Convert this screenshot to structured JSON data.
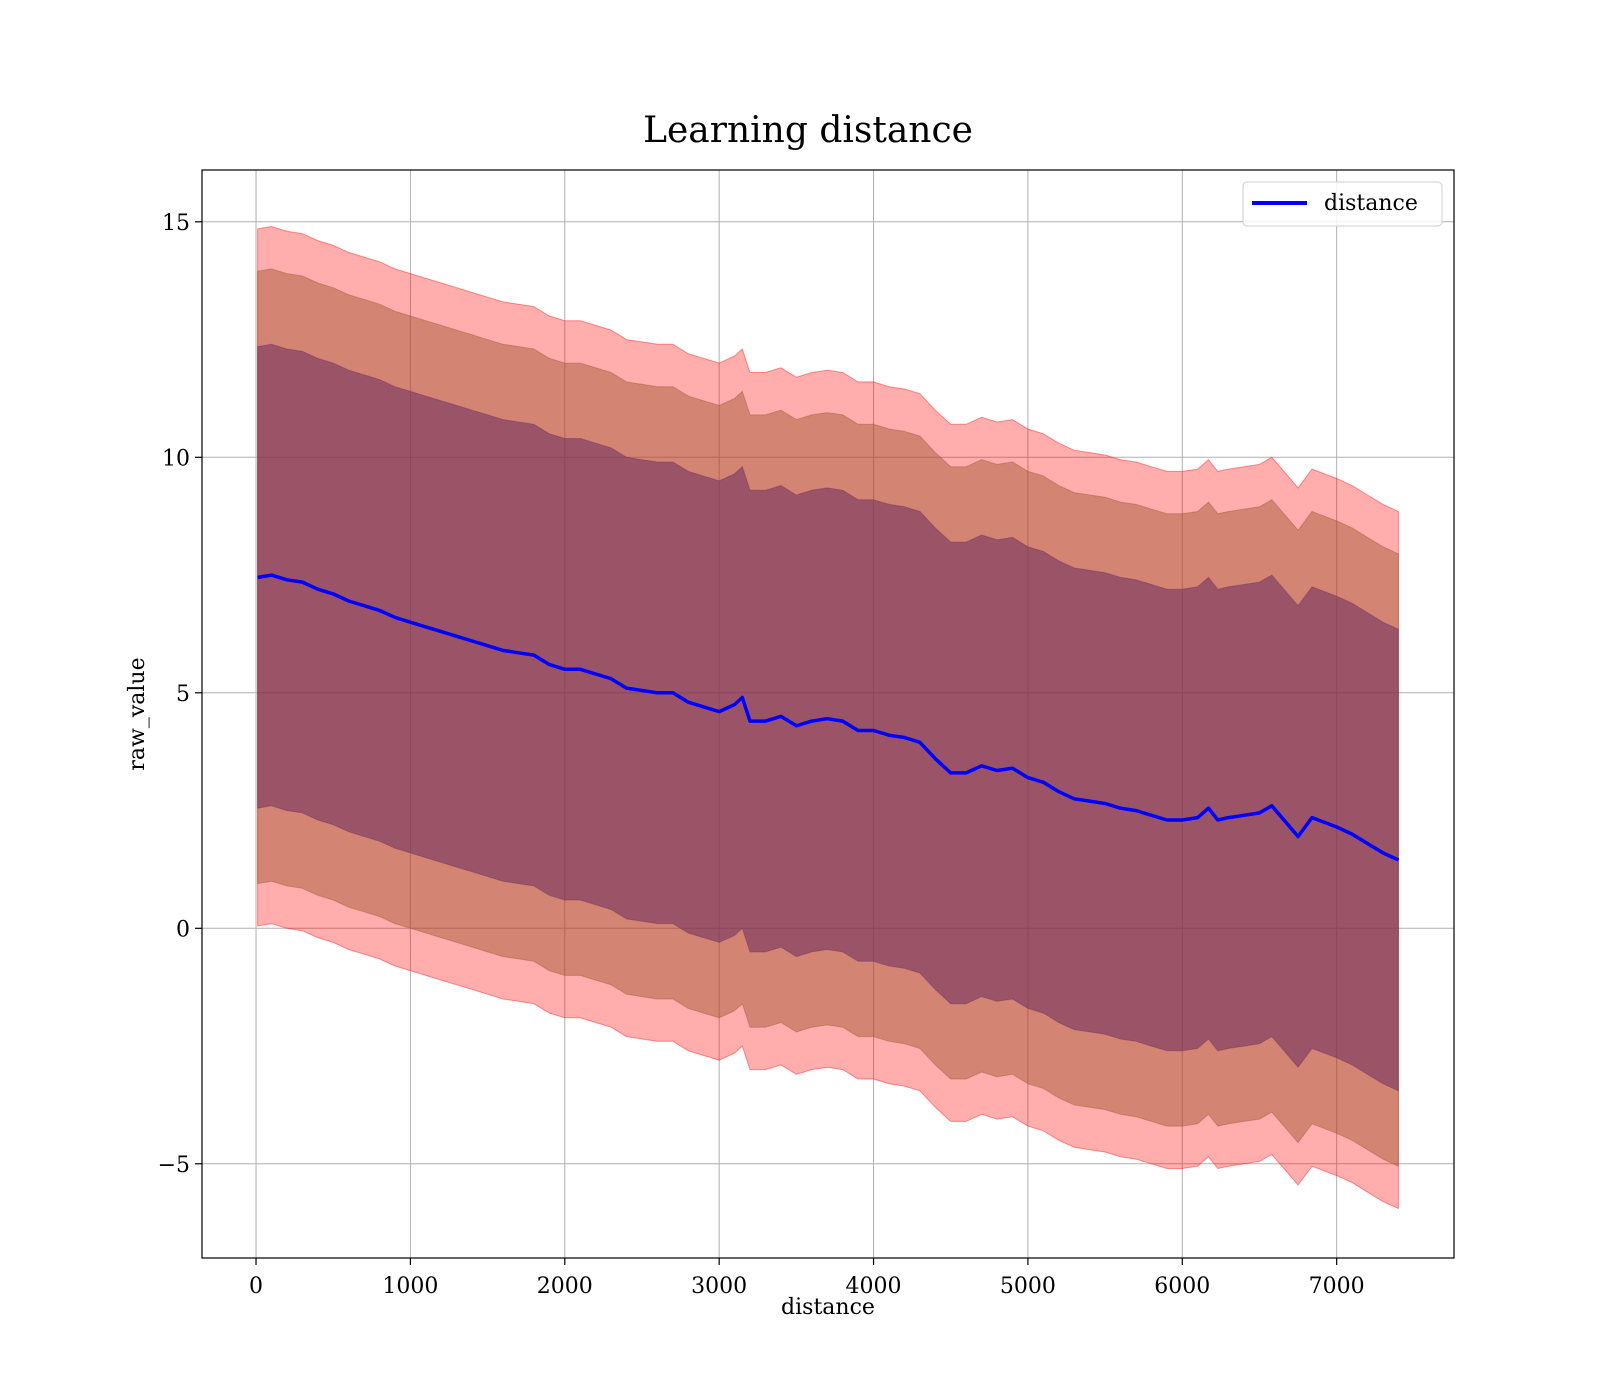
{
  "chart_data": {
    "type": "line",
    "title": "Learning distance",
    "xlabel": "distance",
    "ylabel": "raw_value",
    "xlim": [
      -350,
      7760
    ],
    "ylim": [
      -7.0,
      16.1
    ],
    "xticks": [
      0,
      1000,
      2000,
      3000,
      4000,
      5000,
      6000,
      7000
    ],
    "xtick_labels": [
      "0",
      "1000",
      "2000",
      "3000",
      "4000",
      "5000",
      "6000",
      "7000"
    ],
    "yticks": [
      -5,
      0,
      5,
      10,
      15
    ],
    "ytick_labels": [
      "−5",
      "0",
      "5",
      "10",
      "15"
    ],
    "grid": true,
    "legend": {
      "position": "top-right",
      "entries": [
        "distance"
      ]
    },
    "colors": {
      "line": "#0000ff",
      "band_outer": "#ff0000",
      "band_middle": "#a0522d",
      "band_inner": "#6b2d5c"
    },
    "series": [
      {
        "name": "distance",
        "x": [
          10,
          100,
          200,
          300,
          400,
          500,
          600,
          700,
          800,
          900,
          1000,
          1100,
          1200,
          1300,
          1400,
          1500,
          1600,
          1700,
          1800,
          1900,
          2000,
          2100,
          2200,
          2300,
          2400,
          2500,
          2600,
          2700,
          2800,
          2900,
          3000,
          3100,
          3150,
          3200,
          3300,
          3400,
          3500,
          3600,
          3700,
          3800,
          3900,
          4000,
          4100,
          4200,
          4300,
          4400,
          4500,
          4600,
          4700,
          4800,
          4900,
          5000,
          5100,
          5200,
          5300,
          5400,
          5500,
          5600,
          5700,
          5800,
          5900,
          6000,
          6100,
          6170,
          6230,
          6300,
          6400,
          6500,
          6580,
          6750,
          6840,
          7000,
          7100,
          7200,
          7300,
          7400
        ],
        "y": [
          7.45,
          7.5,
          7.4,
          7.35,
          7.2,
          7.1,
          6.95,
          6.85,
          6.75,
          6.6,
          6.5,
          6.4,
          6.3,
          6.2,
          6.1,
          6.0,
          5.9,
          5.85,
          5.8,
          5.6,
          5.5,
          5.5,
          5.4,
          5.3,
          5.1,
          5.05,
          5.0,
          5.0,
          4.8,
          4.7,
          4.6,
          4.75,
          4.9,
          4.4,
          4.4,
          4.5,
          4.3,
          4.4,
          4.45,
          4.4,
          4.2,
          4.2,
          4.1,
          4.05,
          3.95,
          3.6,
          3.3,
          3.3,
          3.45,
          3.35,
          3.4,
          3.2,
          3.1,
          2.9,
          2.75,
          2.7,
          2.65,
          2.55,
          2.5,
          2.4,
          2.3,
          2.3,
          2.35,
          2.55,
          2.3,
          2.35,
          2.4,
          2.45,
          2.6,
          1.95,
          2.35,
          2.15,
          2.0,
          1.8,
          1.6,
          1.45
        ]
      }
    ],
    "bands": [
      {
        "lower_offset": -7.4,
        "upper_offset": 7.4
      },
      {
        "lower_offset": -6.5,
        "upper_offset": 6.5
      },
      {
        "lower_offset": -4.9,
        "upper_offset": 4.9
      }
    ]
  }
}
